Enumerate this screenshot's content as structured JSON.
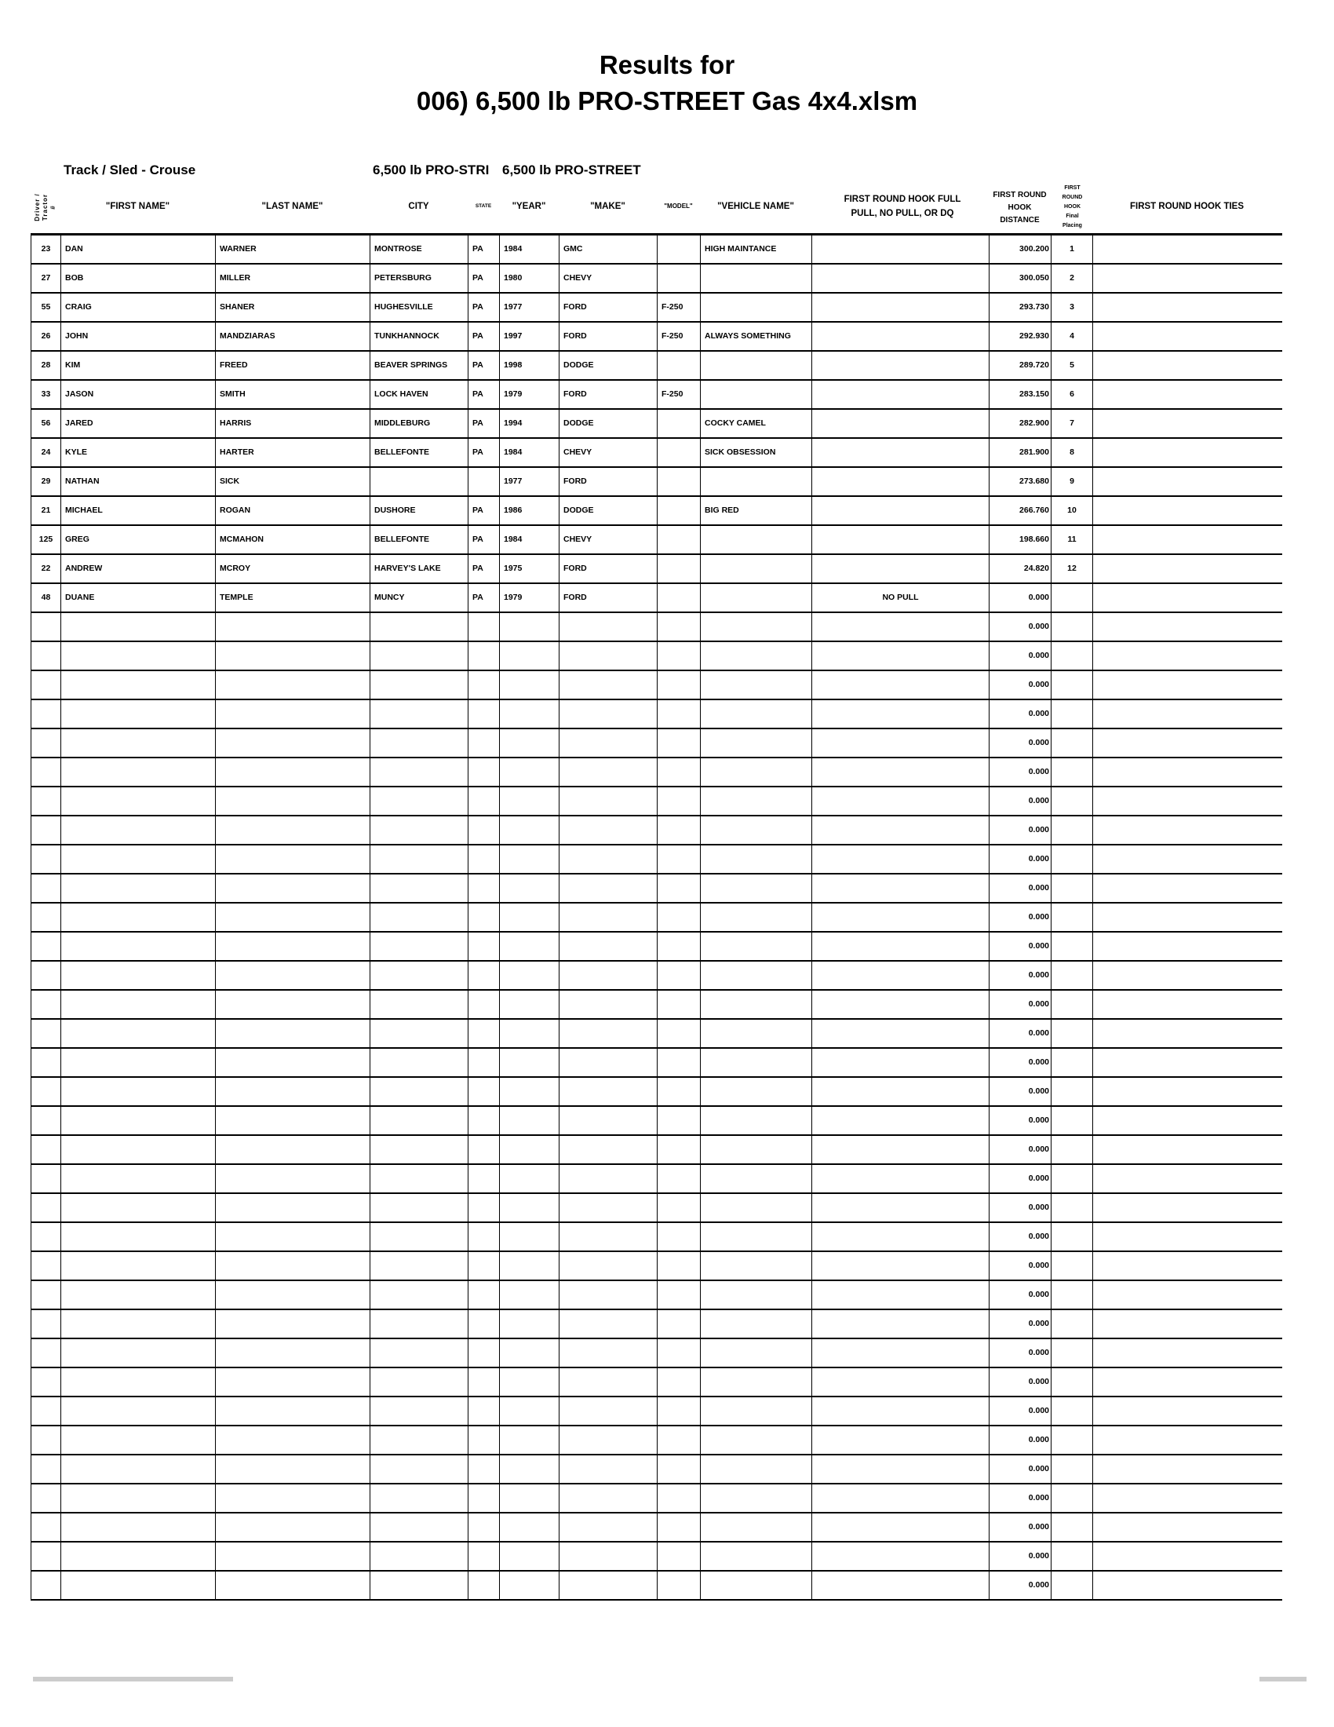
{
  "title": {
    "line1": "Results for",
    "line2": "006) 6,500 lb PRO-STREET Gas 4x4.xlsm"
  },
  "subheader": {
    "track_sled": "Track / Sled - Crouse",
    "class_a": "6,500 lb PRO-STRI",
    "class_b": "6,500 lb PRO-STREET"
  },
  "columns": {
    "number": "Driver / Tractor #",
    "first_name": "\"FIRST NAME\"",
    "last_name": "\"LAST NAME\"",
    "city": "CITY",
    "state": "STATE",
    "year": "\"YEAR\"",
    "make": "\"MAKE\"",
    "model": "\"MODEL\"",
    "vehicle_name": "\"VEHICLE NAME\"",
    "result": "FIRST ROUND HOOK FULL PULL, NO PULL, OR DQ",
    "distance": "FIRST ROUND HOOK DISTANCE",
    "placing": "FIRST ROUND HOOK Final Placing",
    "ties": "FIRST ROUND HOOK TIES"
  },
  "rows": [
    {
      "number": "23",
      "first": "DAN",
      "last": "WARNER",
      "city": "MONTROSE",
      "state": "PA",
      "year": "1984",
      "make": "GMC",
      "model": "",
      "vehicle": "HIGH MAINTANCE",
      "result": "",
      "distance": "300.200",
      "placing": "1",
      "ties": ""
    },
    {
      "number": "27",
      "first": "BOB",
      "last": "MILLER",
      "city": "PETERSBURG",
      "state": "PA",
      "year": "1980",
      "make": "CHEVY",
      "model": "",
      "vehicle": "",
      "result": "",
      "distance": "300.050",
      "placing": "2",
      "ties": ""
    },
    {
      "number": "55",
      "first": "CRAIG",
      "last": "SHANER",
      "city": "HUGHESVILLE",
      "state": "PA",
      "year": "1977",
      "make": "FORD",
      "model": "F-250",
      "vehicle": "",
      "result": "",
      "distance": "293.730",
      "placing": "3",
      "ties": ""
    },
    {
      "number": "26",
      "first": "JOHN",
      "last": "MANDZIARAS",
      "city": "TUNKHANNOCK",
      "state": "PA",
      "year": "1997",
      "make": "FORD",
      "model": "F-250",
      "vehicle": "ALWAYS SOMETHING",
      "result": "",
      "distance": "292.930",
      "placing": "4",
      "ties": ""
    },
    {
      "number": "28",
      "first": "KIM",
      "last": "FREED",
      "city": "BEAVER SPRINGS",
      "state": "PA",
      "year": "1998",
      "make": "DODGE",
      "model": "",
      "vehicle": "",
      "result": "",
      "distance": "289.720",
      "placing": "5",
      "ties": ""
    },
    {
      "number": "33",
      "first": "JASON",
      "last": "SMITH",
      "city": "LOCK HAVEN",
      "state": "PA",
      "year": "1979",
      "make": "FORD",
      "model": "F-250",
      "vehicle": "",
      "result": "",
      "distance": "283.150",
      "placing": "6",
      "ties": ""
    },
    {
      "number": "56",
      "first": "JARED",
      "last": "HARRIS",
      "city": "MIDDLEBURG",
      "state": "PA",
      "year": "1994",
      "make": "DODGE",
      "model": "",
      "vehicle": "COCKY CAMEL",
      "result": "",
      "distance": "282.900",
      "placing": "7",
      "ties": ""
    },
    {
      "number": "24",
      "first": "KYLE",
      "last": "HARTER",
      "city": "BELLEFONTE",
      "state": "PA",
      "year": "1984",
      "make": "CHEVY",
      "model": "",
      "vehicle": "SICK OBSESSION",
      "result": "",
      "distance": "281.900",
      "placing": "8",
      "ties": ""
    },
    {
      "number": "29",
      "first": "NATHAN",
      "last": "SICK",
      "city": "",
      "state": "",
      "year": "1977",
      "make": "FORD",
      "model": "",
      "vehicle": "",
      "result": "",
      "distance": "273.680",
      "placing": "9",
      "ties": ""
    },
    {
      "number": "21",
      "first": "MICHAEL",
      "last": "ROGAN",
      "city": "DUSHORE",
      "state": "PA",
      "year": "1986",
      "make": "DODGE",
      "model": "",
      "vehicle": "BIG RED",
      "result": "",
      "distance": "266.760",
      "placing": "10",
      "ties": ""
    },
    {
      "number": "125",
      "first": "GREG",
      "last": "MCMAHON",
      "city": "BELLEFONTE",
      "state": "PA",
      "year": "1984",
      "make": "CHEVY",
      "model": "",
      "vehicle": "",
      "result": "",
      "distance": "198.660",
      "placing": "11",
      "ties": ""
    },
    {
      "number": "22",
      "first": "ANDREW",
      "last": "MCROY",
      "city": "HARVEY'S LAKE",
      "state": "PA",
      "year": "1975",
      "make": "FORD",
      "model": "",
      "vehicle": "",
      "result": "",
      "distance": "24.820",
      "placing": "12",
      "ties": ""
    },
    {
      "number": "48",
      "first": "DUANE",
      "last": "TEMPLE",
      "city": "MUNCY",
      "state": "PA",
      "year": "1979",
      "make": "FORD",
      "model": "",
      "vehicle": "",
      "result": "NO PULL",
      "distance": "0.000",
      "placing": "",
      "ties": ""
    },
    {
      "distance": "0.000"
    },
    {
      "distance": "0.000"
    },
    {
      "distance": "0.000"
    },
    {
      "distance": "0.000"
    },
    {
      "distance": "0.000"
    },
    {
      "distance": "0.000"
    },
    {
      "distance": "0.000"
    },
    {
      "distance": "0.000"
    },
    {
      "distance": "0.000"
    },
    {
      "distance": "0.000"
    },
    {
      "distance": "0.000"
    },
    {
      "distance": "0.000"
    },
    {
      "distance": "0.000"
    },
    {
      "distance": "0.000"
    },
    {
      "distance": "0.000"
    },
    {
      "distance": "0.000"
    },
    {
      "distance": "0.000"
    },
    {
      "distance": "0.000"
    },
    {
      "distance": "0.000"
    },
    {
      "distance": "0.000"
    },
    {
      "distance": "0.000"
    },
    {
      "distance": "0.000"
    },
    {
      "distance": "0.000"
    },
    {
      "distance": "0.000"
    },
    {
      "distance": "0.000"
    },
    {
      "distance": "0.000"
    },
    {
      "distance": "0.000"
    },
    {
      "distance": "0.000"
    },
    {
      "distance": "0.000"
    },
    {
      "distance": "0.000"
    },
    {
      "distance": "0.000"
    },
    {
      "distance": "0.000"
    },
    {
      "distance": "0.000"
    },
    {
      "distance": "0.000"
    }
  ]
}
